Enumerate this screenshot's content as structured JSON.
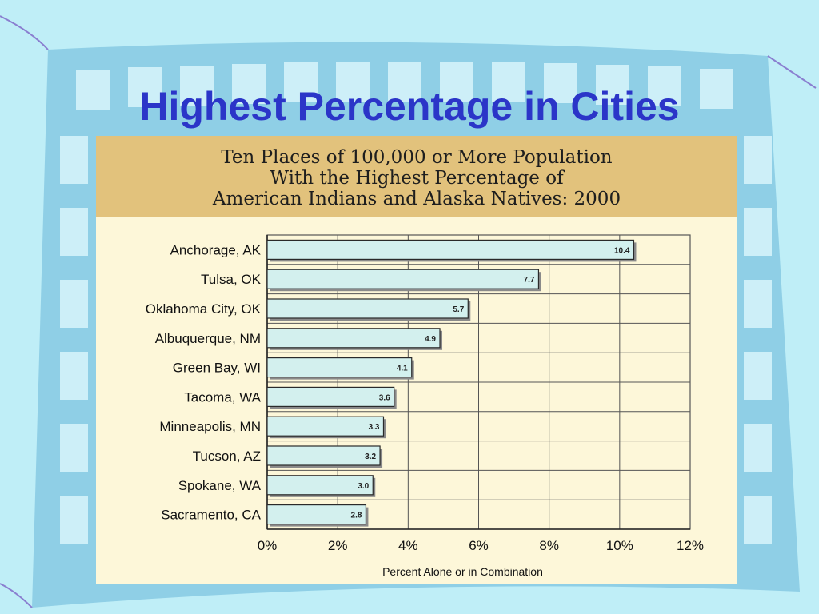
{
  "slide": {
    "title": "Highest Percentage in Cities"
  },
  "chart_data": {
    "type": "bar",
    "orientation": "horizontal",
    "title_lines": [
      "Ten Places of 100,000 or More Population",
      "With the Highest Percentage of",
      "American Indians and Alaska Natives: 2000"
    ],
    "categories": [
      "Anchorage, AK",
      "Tulsa, OK",
      "Oklahoma City, OK",
      "Albuquerque, NM",
      "Green Bay, WI",
      "Tacoma, WA",
      "Minneapolis, MN",
      "Tucson, AZ",
      "Spokane, WA",
      "Sacramento, CA"
    ],
    "values": [
      10.4,
      7.7,
      5.7,
      4.9,
      4.1,
      3.6,
      3.3,
      3.2,
      3.0,
      2.8
    ],
    "value_labels": [
      "10.4",
      "7.7",
      "5.7",
      "4.9",
      "4.1",
      "3.6",
      "3.3",
      "3.2",
      "3.0",
      "2.8"
    ],
    "xlabel": "Percent Alone or in Combination",
    "xticks": [
      0,
      2,
      4,
      6,
      8,
      10,
      12
    ],
    "xtick_labels": [
      "0%",
      "2%",
      "4%",
      "6%",
      "8%",
      "10%",
      "12%"
    ],
    "xlim": [
      0,
      12
    ],
    "grid": true,
    "colors": {
      "bar_fill": "#d3f0ee",
      "bar_stroke": "#2a2a2a",
      "bar_shadow": "#8a8a8a",
      "grid": "#555555",
      "plot_bg": "#fdf7d9"
    }
  }
}
